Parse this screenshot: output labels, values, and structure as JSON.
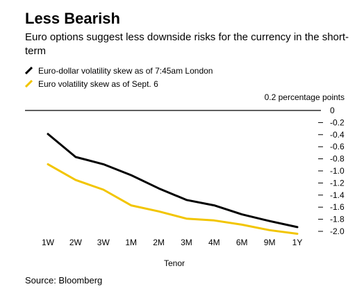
{
  "chart_data": {
    "type": "line",
    "title": "Less Bearish",
    "subtitle": "Euro options suggest less downside risks for the currency in the short-term",
    "xlabel": "Tenor",
    "ylabel": "",
    "unit_label": "0.2 percentage points",
    "categories": [
      "1W",
      "2W",
      "3W",
      "1M",
      "2M",
      "3M",
      "4M",
      "6M",
      "9M",
      "1Y"
    ],
    "y_ticks": [
      "0",
      "-0.2",
      "-0.4",
      "-0.6",
      "-0.8",
      "-1.0",
      "-1.2",
      "-1.4",
      "-1.6",
      "-1.8",
      "-2.0"
    ],
    "y_tick_values": [
      0,
      -0.2,
      -0.4,
      -0.6,
      -0.8,
      -1.0,
      -1.2,
      -1.4,
      -1.6,
      -1.8,
      -2.0
    ],
    "ylim": [
      -2.0,
      0
    ],
    "y_axis_side": "right",
    "series": [
      {
        "name": "Euro-dollar volatility skew as of 7:45am London",
        "color": "#000000",
        "values": [
          -0.39,
          -0.77,
          -0.89,
          -1.07,
          -1.29,
          -1.48,
          -1.57,
          -1.72,
          -1.83,
          -1.93
        ]
      },
      {
        "name": "Euro volatility skew as of Sept. 6",
        "color": "#f2c500",
        "values": [
          -0.89,
          -1.15,
          -1.31,
          -1.57,
          -1.67,
          -1.79,
          -1.82,
          -1.89,
          -1.98,
          -2.04
        ]
      }
    ],
    "legend_position": "top-left",
    "grid": false
  },
  "source": "Source: Bloomberg"
}
